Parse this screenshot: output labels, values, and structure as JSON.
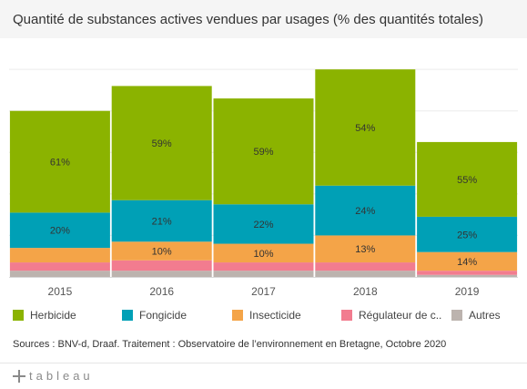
{
  "title": "Quantité de substances actives vendues par usages (% des quantités totales)",
  "source": "Sources :  BNV-d, Draaf.  Traitement :  Observatoire de l’environnement en Bretagne, Octobre 2020",
  "logo_text": "tableau",
  "legend": [
    {
      "label": "Herbicide",
      "color": "#8bb300"
    },
    {
      "label": "Fongicide",
      "color": "#00a0b6"
    },
    {
      "label": "Insecticide",
      "color": "#f4a448"
    },
    {
      "label": "Régulateur de c..",
      "color": "#f27c8f"
    },
    {
      "label": "Autres",
      "color": "#bcb3ae"
    }
  ],
  "chart_data": {
    "type": "bar",
    "stacked": true,
    "title": "Quantité de substances actives vendues par usages (% des quantités totales)",
    "categories": [
      "2015",
      "2016",
      "2017",
      "2018",
      "2019"
    ],
    "totals": [
      80,
      92,
      86,
      100,
      65
    ],
    "series": [
      {
        "name": "Autres",
        "color": "#bcb3ae",
        "values": [
          3,
          3,
          3,
          3,
          1
        ],
        "labels": [
          "",
          "",
          "",
          "",
          ""
        ]
      },
      {
        "name": "Régulateur de c..",
        "color": "#f27c8f",
        "values": [
          4,
          5,
          4,
          4,
          2
        ],
        "labels": [
          "",
          "",
          "",
          "",
          ""
        ]
      },
      {
        "name": "Insecticide",
        "color": "#f4a448",
        "values": [
          7,
          9,
          9,
          13,
          9
        ],
        "labels": [
          "",
          "10%",
          "10%",
          "13%",
          "14%"
        ]
      },
      {
        "name": "Fongicide",
        "color": "#00a0b6",
        "values": [
          17,
          20,
          19,
          24,
          17
        ],
        "labels": [
          "20%",
          "21%",
          "22%",
          "24%",
          "25%"
        ]
      },
      {
        "name": "Herbicide",
        "color": "#8bb300",
        "values": [
          49,
          55,
          51,
          56,
          36
        ],
        "labels": [
          "61%",
          "59%",
          "59%",
          "54%",
          "55%"
        ]
      }
    ],
    "ylim": [
      0,
      115
    ],
    "grid": true,
    "legend_position": "bottom"
  }
}
